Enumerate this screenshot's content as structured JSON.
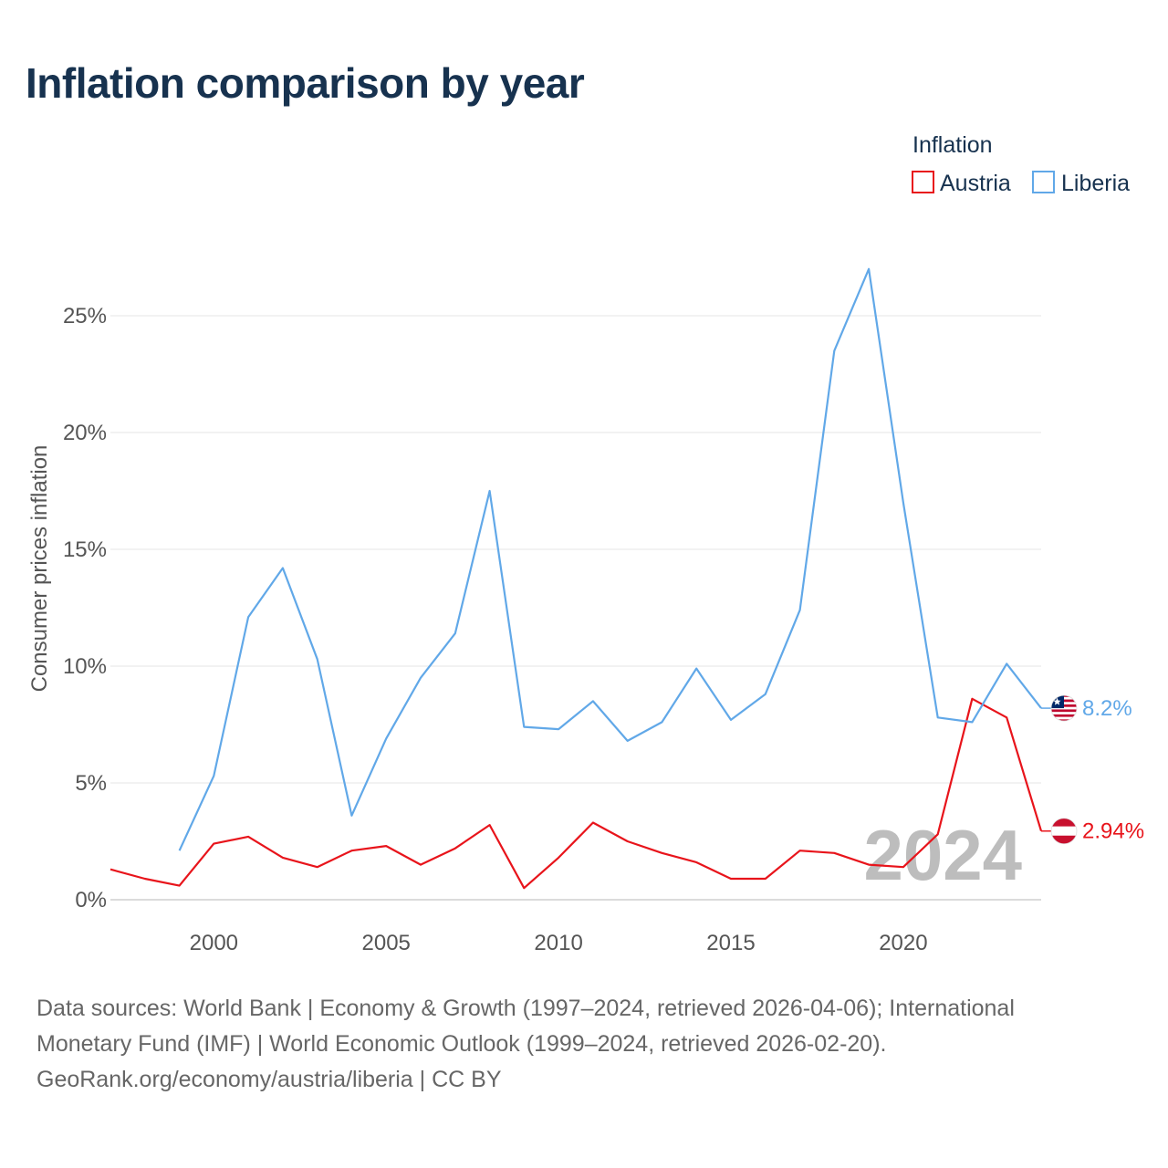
{
  "title": "Inflation comparison by year",
  "footer": {
    "line1": "Data sources: World Bank | Economy & Growth (1997–2024, retrieved 2026-04-06); International",
    "line2": "Monetary Fund (IMF) | World Economic Outlook (1999–2024, retrieved 2026-02-20).",
    "line3": "GeoRank.org/economy/austria/liberia | CC BY"
  },
  "flags": {
    "austria": {
      "stripes": [
        "#c8102e",
        "#ffffff",
        "#c8102e"
      ]
    },
    "liberia": {
      "stripes": [
        "#bf0a30",
        "#ffffff"
      ],
      "canton": "#002868",
      "star": "#ffffff"
    }
  },
  "chart_data": {
    "type": "line",
    "title": "Inflation comparison by year",
    "xlabel": "",
    "ylabel": "Consumer prices inflation",
    "xlim": [
      1997,
      2024
    ],
    "ylim": [
      0,
      27
    ],
    "x_ticks": [
      2000,
      2005,
      2010,
      2015,
      2020
    ],
    "y_ticks": [
      0,
      5,
      10,
      15,
      20,
      25
    ],
    "y_tick_labels": [
      "0%",
      "5%",
      "10%",
      "15%",
      "20%",
      "25%"
    ],
    "grid": true,
    "legend_title": "Inflation",
    "legend_position": "top-right",
    "watermark_year": "2024",
    "series": [
      {
        "name": "Austria",
        "color": "#e8141b",
        "end_label": "2.94%",
        "x": [
          1997,
          1998,
          1999,
          2000,
          2001,
          2002,
          2003,
          2004,
          2005,
          2006,
          2007,
          2008,
          2009,
          2010,
          2011,
          2012,
          2013,
          2014,
          2015,
          2016,
          2017,
          2018,
          2019,
          2020,
          2021,
          2022,
          2023,
          2024
        ],
        "values": [
          1.3,
          0.9,
          0.6,
          2.4,
          2.7,
          1.8,
          1.4,
          2.1,
          2.3,
          1.5,
          2.2,
          3.2,
          0.5,
          1.8,
          3.3,
          2.5,
          2.0,
          1.6,
          0.9,
          0.9,
          2.1,
          2.0,
          1.5,
          1.4,
          2.8,
          8.6,
          7.8,
          2.94
        ]
      },
      {
        "name": "Liberia",
        "color": "#61a8e8",
        "end_label": "8.2%",
        "x": [
          1999,
          2000,
          2001,
          2002,
          2003,
          2004,
          2005,
          2006,
          2007,
          2008,
          2009,
          2010,
          2011,
          2012,
          2013,
          2014,
          2015,
          2016,
          2017,
          2018,
          2019,
          2020,
          2021,
          2022,
          2023,
          2024
        ],
        "values": [
          2.1,
          5.3,
          12.1,
          14.2,
          10.3,
          3.6,
          6.9,
          9.5,
          11.4,
          17.5,
          7.4,
          7.3,
          8.5,
          6.8,
          7.6,
          9.9,
          7.7,
          8.8,
          12.4,
          23.5,
          27.0,
          17.0,
          7.8,
          7.6,
          10.1,
          8.2
        ]
      }
    ]
  }
}
